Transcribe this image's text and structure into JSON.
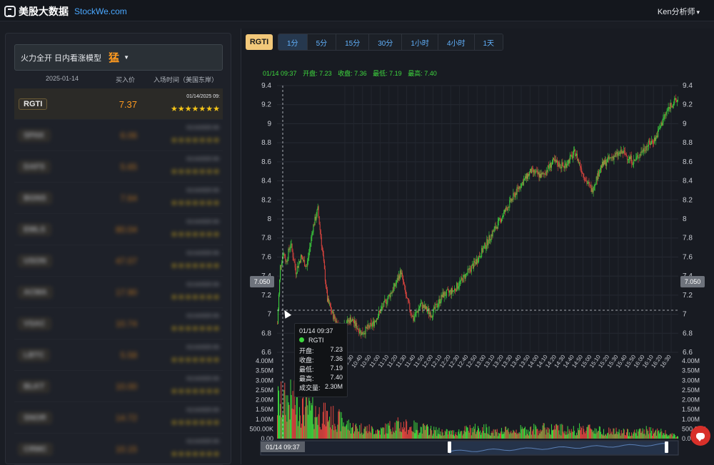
{
  "header": {
    "logo_cn": "美股大数据",
    "logo_en": "StockWe.com",
    "user": "Ken分析师"
  },
  "left": {
    "model_label": "火力全开 日内看涨模型",
    "model_badge": "猛",
    "columns": {
      "date": "2025-01-14",
      "price": "买入价",
      "time": "入场时间（美国东岸）"
    },
    "rows": [
      {
        "ticker": "RGTI",
        "price": "7.37",
        "time": "01/14/2025 09:",
        "stars": "★★★★★★★",
        "active": true
      },
      {
        "ticker": "SPAK",
        "price": "6.06",
        "time": "01/14/2025 09:",
        "stars": "★★★★★★★"
      },
      {
        "ticker": "DAFS",
        "price": "5.65",
        "time": "01/14/2025 09:",
        "stars": "★★★★★★★"
      },
      {
        "ticker": "BGNS",
        "price": "7.64",
        "time": "01/14/2025 09:",
        "stars": "★★★★★★★"
      },
      {
        "ticker": "EMLS",
        "price": "80.04",
        "time": "01/14/2025 09:",
        "stars": "★★★★★★★"
      },
      {
        "ticker": "USON",
        "price": "47.07",
        "time": "01/14/2025 09:",
        "stars": "★★★★★★★"
      },
      {
        "ticker": "ACMA",
        "price": "17.90",
        "time": "01/14/2025 09:",
        "stars": "★★★★★★★"
      },
      {
        "ticker": "VSAC",
        "price": "10.74",
        "time": "01/14/2025 09:",
        "stars": "★★★★★★★"
      },
      {
        "ticker": "LBTC",
        "price": "5.58",
        "time": "01/14/2025 09:",
        "stars": "★★★★★★★"
      },
      {
        "ticker": "BLKT",
        "price": "10.00",
        "time": "01/14/2025 09:",
        "stars": "★★★★★★★"
      },
      {
        "ticker": "SNOR",
        "price": "14.72",
        "time": "01/14/2025 09:",
        "stars": "★★★★★★★"
      },
      {
        "ticker": "CRMC",
        "price": "10.15",
        "time": "01/14/2025 09:",
        "stars": "★★★★★★★"
      }
    ]
  },
  "chart_panel": {
    "symbol": "RGTI",
    "intervals": [
      "1分",
      "5分",
      "15分",
      "30分",
      "1小时",
      "4小时",
      "1天"
    ],
    "selected_interval": "1分",
    "ohlc_line": {
      "time": "01/14 09:37",
      "open": "开盘: 7.23",
      "close": "收盘: 7.36",
      "low": "最低: 7.19",
      "high": "最高: 7.40"
    },
    "crosshair_price": "7.050",
    "navigator_label": "01/14 09:37",
    "tooltip": {
      "time": "01/14 09:37",
      "name": "RGTI",
      "rows": [
        {
          "label": "开盘:",
          "value": "7.23"
        },
        {
          "label": "收盘:",
          "value": "7.36"
        },
        {
          "label": "最低:",
          "value": "7.19"
        },
        {
          "label": "最高:",
          "value": "7.40"
        },
        {
          "label": "成交量:",
          "value": "2.30M"
        }
      ]
    },
    "colors": {
      "up": "#3ed83e",
      "down": "#e0453f",
      "accent": "#f2c87a",
      "link": "#62b3ff"
    }
  },
  "chart_data": {
    "type": "candlestick",
    "price_ylim": [
      6.6,
      9.4
    ],
    "price_ticks": [
      "9.4",
      "9.2",
      "9",
      "8.8",
      "8.6",
      "8.4",
      "8.2",
      "8",
      "7.8",
      "7.6",
      "7.4",
      "7.2",
      "7",
      "6.8",
      "6.6"
    ],
    "volume_ylim": [
      0,
      4000000
    ],
    "volume_ticks": [
      "4.00M",
      "3.50M",
      "3.00M",
      "2.50M",
      "2.00M",
      "1.50M",
      "1.00M",
      "500.00K",
      "0.00"
    ],
    "x_ticks": [
      "10:20",
      "10:30",
      "10:40",
      "10:50",
      "11:00",
      "11:10",
      "11:20",
      "11:30",
      "11:40",
      "11:50",
      "12:00",
      "12:10",
      "12:20",
      "12:30",
      "12:40",
      "12:50",
      "13:00",
      "13:10",
      "13:20",
      "13:30",
      "13:40",
      "13:50",
      "14:00",
      "14:10",
      "14:20",
      "14:30",
      "14:40",
      "14:50",
      "15:00",
      "15:10",
      "15:20",
      "15:30",
      "15:40",
      "15:50",
      "16:00",
      "16:10",
      "16:20",
      "16:30"
    ],
    "price_path": [
      [
        0,
        6.9
      ],
      [
        4,
        7.5
      ],
      [
        8,
        7.65
      ],
      [
        12,
        7.55
      ],
      [
        18,
        7.75
      ],
      [
        25,
        7.45
      ],
      [
        32,
        7.6
      ],
      [
        40,
        7.5
      ],
      [
        48,
        7.9
      ],
      [
        55,
        8.1
      ],
      [
        62,
        7.6
      ],
      [
        68,
        7.15
      ],
      [
        75,
        7.0
      ],
      [
        85,
        6.85
      ],
      [
        100,
        6.95
      ],
      [
        115,
        6.8
      ],
      [
        130,
        6.9
      ],
      [
        145,
        7.1
      ],
      [
        160,
        7.3
      ],
      [
        168,
        7.45
      ],
      [
        176,
        7.15
      ],
      [
        185,
        6.95
      ],
      [
        195,
        7.1
      ],
      [
        210,
        7.0
      ],
      [
        225,
        7.2
      ],
      [
        240,
        7.25
      ],
      [
        255,
        7.4
      ],
      [
        270,
        7.55
      ],
      [
        285,
        7.75
      ],
      [
        300,
        7.95
      ],
      [
        315,
        8.15
      ],
      [
        330,
        8.35
      ],
      [
        345,
        8.5
      ],
      [
        360,
        8.45
      ],
      [
        375,
        8.6
      ],
      [
        390,
        8.55
      ],
      [
        405,
        8.7
      ],
      [
        420,
        8.4
      ],
      [
        428,
        8.3
      ],
      [
        440,
        8.55
      ],
      [
        455,
        8.65
      ],
      [
        470,
        8.7
      ],
      [
        485,
        8.6
      ],
      [
        500,
        8.75
      ],
      [
        515,
        8.85
      ],
      [
        525,
        9.05
      ],
      [
        535,
        9.2
      ],
      [
        545,
        9.25
      ]
    ],
    "volume_profile": [
      [
        0,
        1.8
      ],
      [
        20,
        1.9
      ],
      [
        40,
        1.4
      ],
      [
        60,
        1.2
      ],
      [
        80,
        1.0
      ],
      [
        100,
        0.6
      ],
      [
        120,
        0.5
      ],
      [
        140,
        0.4
      ],
      [
        160,
        0.7
      ],
      [
        180,
        0.6
      ],
      [
        200,
        0.5
      ],
      [
        220,
        0.35
      ],
      [
        240,
        0.3
      ],
      [
        260,
        0.45
      ],
      [
        280,
        0.5
      ],
      [
        300,
        0.35
      ],
      [
        320,
        0.4
      ],
      [
        340,
        0.45
      ],
      [
        360,
        0.5
      ],
      [
        380,
        0.5
      ],
      [
        400,
        0.4
      ],
      [
        420,
        0.55
      ],
      [
        440,
        0.4
      ],
      [
        460,
        0.35
      ],
      [
        480,
        0.3
      ],
      [
        500,
        0.4
      ],
      [
        520,
        0.35
      ],
      [
        545,
        0.1
      ]
    ]
  }
}
